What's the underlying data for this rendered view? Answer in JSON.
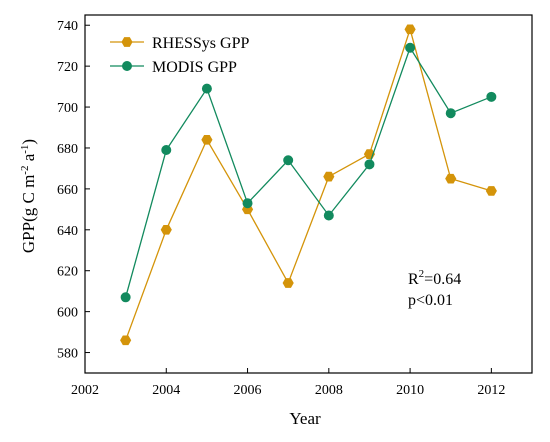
{
  "chart_data": {
    "type": "line",
    "title": "",
    "xlabel": "Year",
    "ylabel": "GPP(g C m",
    "ylabel_sup1": "-2",
    "ylabel_mid": " a",
    "ylabel_sup2": "-1",
    "ylabel_end": ")",
    "xlim": [
      2002,
      2013
    ],
    "ylim": [
      570,
      745
    ],
    "x_ticks": [
      2002,
      2004,
      2006,
      2008,
      2010,
      2012
    ],
    "y_ticks": [
      580,
      600,
      620,
      640,
      660,
      680,
      700,
      720,
      740
    ],
    "x": [
      2003,
      2004,
      2005,
      2006,
      2007,
      2008,
      2009,
      2010,
      2011,
      2012
    ],
    "series": [
      {
        "name": "RHESSys GPP",
        "color": "#d4940a",
        "marker": "hexagon",
        "values": [
          586,
          640,
          684,
          650,
          614,
          666,
          677,
          738,
          665,
          659
        ]
      },
      {
        "name": "MODIS GPP",
        "color": "#128a5e",
        "marker": "circle",
        "values": [
          607,
          679,
          709,
          653,
          674,
          647,
          672,
          729,
          697,
          705
        ]
      }
    ],
    "legend_position": "top-left",
    "grid": false,
    "annotation": {
      "r2_prefix": "R",
      "r2_sup": "2",
      "r2_value": "=0.64",
      "p_text": "p<0.01"
    }
  }
}
